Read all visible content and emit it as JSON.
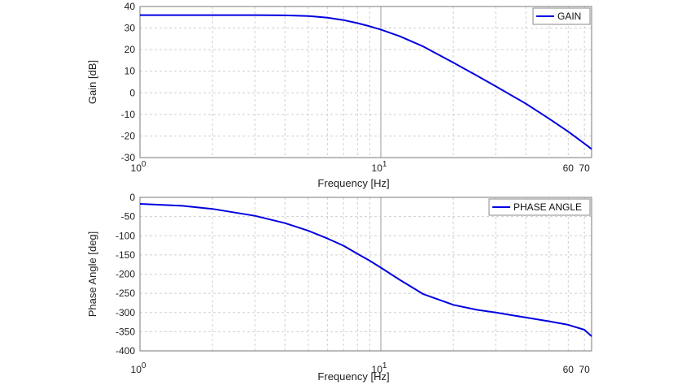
{
  "chart_data": [
    {
      "type": "line",
      "x_scale": "log",
      "xlim": [
        1,
        75
      ],
      "ylim": [
        -30,
        40
      ],
      "xlabel": "Frequency [Hz]",
      "ylabel": "Gain [dB]",
      "xtick_labels": [
        {
          "x": 1,
          "base": "10",
          "exp": "0"
        },
        {
          "x": 10,
          "base": "10",
          "exp": "1"
        },
        {
          "x": 60,
          "text": "60"
        },
        {
          "x": 70,
          "text": "70"
        }
      ],
      "yticks": [
        40,
        30,
        20,
        10,
        0,
        -10,
        -20,
        -30
      ],
      "ytick_labels": [
        "40",
        "30",
        "20",
        "10",
        "0",
        "-10",
        "-20",
        "-30"
      ],
      "grid": true,
      "legend_position": "top-right",
      "series": [
        {
          "name": "GAIN",
          "color": "#0000e0",
          "x": [
            1,
            2,
            3,
            4,
            5,
            6,
            7,
            8,
            9,
            10,
            12,
            15,
            20,
            25,
            30,
            40,
            50,
            60,
            70,
            75
          ],
          "y": [
            36.0,
            36.0,
            36.0,
            35.9,
            35.6,
            34.8,
            33.7,
            32.3,
            30.8,
            29.3,
            26.2,
            21.5,
            14.0,
            8.0,
            3.0,
            -5.0,
            -12.0,
            -18.0,
            -23.5,
            -26.0
          ]
        }
      ]
    },
    {
      "type": "line",
      "x_scale": "log",
      "xlim": [
        1,
        75
      ],
      "ylim": [
        -400,
        0
      ],
      "xlabel": "Frequency [Hz]",
      "ylabel": "Phase Angle [deg]",
      "xtick_labels": [
        {
          "x": 1,
          "base": "10",
          "exp": "0"
        },
        {
          "x": 10,
          "base": "10",
          "exp": "1"
        },
        {
          "x": 60,
          "text": "60"
        },
        {
          "x": 70,
          "text": "70"
        }
      ],
      "yticks": [
        0,
        -50,
        -100,
        -150,
        -200,
        -250,
        -300,
        -350,
        -400
      ],
      "ytick_labels": [
        "0",
        "-50",
        "-100",
        "-150",
        "-200",
        "-250",
        "-300",
        "-350",
        "-400"
      ],
      "grid": true,
      "legend_position": "top-right",
      "series": [
        {
          "name": "PHASE ANGLE",
          "color": "#0000e0",
          "x": [
            1,
            1.5,
            2,
            3,
            4,
            5,
            6,
            7,
            8,
            9,
            10,
            12,
            15,
            20,
            25,
            30,
            40,
            50,
            60,
            70,
            75
          ],
          "y": [
            -17,
            -22,
            -30,
            -48,
            -67,
            -87,
            -107,
            -126,
            -147,
            -165,
            -183,
            -215,
            -252,
            -280,
            -293,
            -300,
            -313,
            -323,
            -332,
            -345,
            -362
          ]
        }
      ]
    }
  ]
}
